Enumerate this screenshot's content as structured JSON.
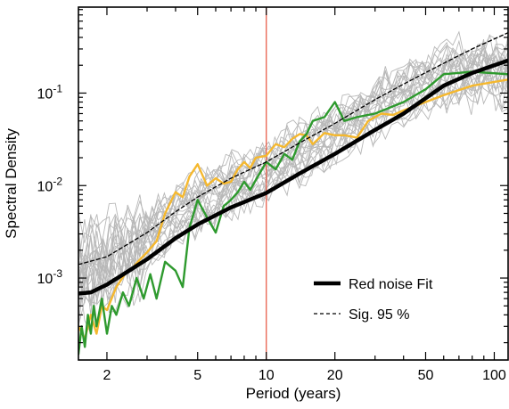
{
  "chart_data": {
    "type": "line",
    "xlabel": "Period (years)",
    "ylabel": "Spectral Density",
    "x_scale": "log",
    "y_scale": "log",
    "xlim": [
      1.5,
      115
    ],
    "ylim": [
      0.00013,
      0.85
    ],
    "x_ticks": [
      {
        "value": 2,
        "label": "2"
      },
      {
        "value": 5,
        "label": "5"
      },
      {
        "value": 10,
        "label": "10"
      },
      {
        "value": 20,
        "label": "20"
      },
      {
        "value": 50,
        "label": "50"
      },
      {
        "value": 100,
        "label": "100"
      }
    ],
    "y_ticks": [
      {
        "value": 0.001,
        "base": "10",
        "exp": "-3"
      },
      {
        "value": 0.01,
        "base": "10",
        "exp": "-2"
      },
      {
        "value": 0.1,
        "base": "10",
        "exp": "-1"
      }
    ],
    "grid": false,
    "legend_position": "bottom-right",
    "legend": [
      {
        "label": "Red noise Fit",
        "style": "thick-solid"
      },
      {
        "label": "Sig. 95 %",
        "style": "dashed"
      }
    ],
    "reference_line": {
      "x": 10,
      "color": "#e8604c"
    },
    "colors": {
      "ensemble": "#b8b8b8",
      "green": "#2e9a2e",
      "orange": "#f5b82e",
      "fit": "#000000",
      "sig": "#000000"
    },
    "series": [
      {
        "role": "red-noise-fit",
        "x": [
          1.5,
          1.7,
          2,
          2.5,
          3,
          4,
          5,
          7,
          10,
          14,
          20,
          30,
          40,
          60,
          80,
          115
        ],
        "y": [
          0.00068,
          0.0007,
          0.00085,
          0.0012,
          0.0016,
          0.0027,
          0.0038,
          0.0058,
          0.0083,
          0.0135,
          0.022,
          0.04,
          0.06,
          0.12,
          0.165,
          0.225
        ]
      },
      {
        "role": "sig-95",
        "x": [
          1.5,
          2,
          3,
          4,
          5,
          7,
          10,
          14,
          20,
          30,
          40,
          60,
          80,
          115
        ],
        "y": [
          0.0014,
          0.0017,
          0.0031,
          0.0052,
          0.0075,
          0.012,
          0.018,
          0.029,
          0.047,
          0.085,
          0.125,
          0.21,
          0.3,
          0.45
        ]
      },
      {
        "role": "orange",
        "x": [
          1.5,
          1.6,
          1.7,
          1.8,
          1.9,
          2.0,
          2.2,
          2.4,
          2.6,
          2.8,
          3.0,
          3.3,
          3.6,
          4.0,
          4.3,
          4.6,
          5.0,
          5.5,
          6.0,
          6.5,
          7.0,
          7.5,
          8.0,
          8.5,
          9.0,
          10,
          11,
          12,
          13,
          14,
          15,
          16,
          18,
          20,
          22,
          25,
          28,
          32,
          36,
          40,
          50,
          60,
          80,
          115
        ],
        "y": [
          0.0003,
          0.00022,
          0.0004,
          0.00025,
          0.0005,
          0.00045,
          0.0008,
          0.0011,
          0.0013,
          0.0016,
          0.0019,
          0.0025,
          0.005,
          0.0085,
          0.0075,
          0.0125,
          0.017,
          0.01,
          0.012,
          0.0105,
          0.011,
          0.015,
          0.018,
          0.0155,
          0.02,
          0.021,
          0.028,
          0.026,
          0.032,
          0.036,
          0.035,
          0.028,
          0.037,
          0.035,
          0.035,
          0.033,
          0.05,
          0.06,
          0.058,
          0.065,
          0.08,
          0.095,
          0.12,
          0.14
        ]
      },
      {
        "role": "green",
        "x": [
          1.5,
          1.55,
          1.6,
          1.65,
          1.7,
          1.75,
          1.8,
          1.9,
          2.0,
          2.1,
          2.2,
          2.35,
          2.5,
          2.7,
          2.9,
          3.1,
          3.3,
          3.6,
          4.0,
          4.3,
          4.6,
          5.0,
          5.5,
          6.0,
          6.5,
          7.0,
          7.5,
          8.0,
          8.5,
          9.0,
          10,
          11,
          12,
          13,
          14,
          15,
          16,
          18,
          20,
          22,
          25,
          30,
          40,
          50,
          60,
          80,
          115
        ],
        "y": [
          0.00015,
          0.0003,
          0.00018,
          0.0004,
          0.00025,
          0.0005,
          0.0003,
          0.0006,
          0.00025,
          0.0005,
          0.0004,
          0.0007,
          0.0005,
          0.001,
          0.0006,
          0.0011,
          0.0006,
          0.0015,
          0.0012,
          0.0008,
          0.0035,
          0.007,
          0.0045,
          0.0031,
          0.006,
          0.007,
          0.0085,
          0.011,
          0.009,
          0.0115,
          0.018,
          0.015,
          0.022,
          0.019,
          0.03,
          0.036,
          0.05,
          0.055,
          0.08,
          0.05,
          0.055,
          0.06,
          0.08,
          0.11,
          0.16,
          0.17,
          0.16
        ]
      }
    ]
  }
}
